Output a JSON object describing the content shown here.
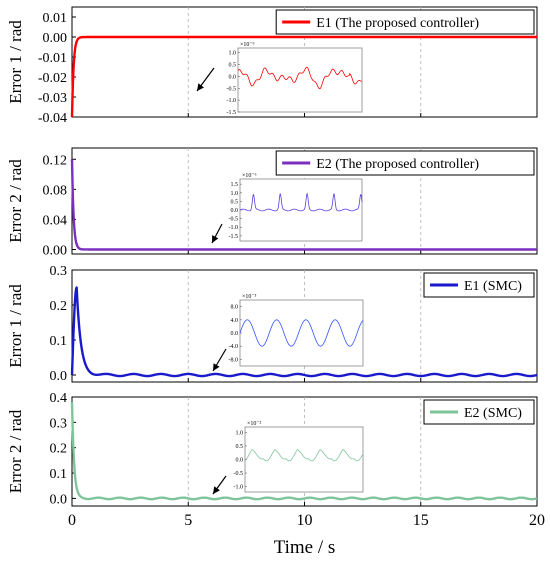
{
  "chart_data": {
    "type": "line",
    "xlabel": "Time / s",
    "xlim": [
      0,
      20
    ],
    "xticks": [
      0,
      5,
      10,
      15,
      20
    ],
    "panels": [
      {
        "ylabel": "Error  1 / rad",
        "ylim": [
          -0.04,
          0.015
        ],
        "yticks": [
          -0.04,
          -0.03,
          -0.02,
          -0.01,
          0.0,
          0.01
        ],
        "ytick_labels": [
          "-0.04",
          "-0.03",
          "-0.02",
          "-0.01",
          "0.00",
          "0.01"
        ],
        "series": {
          "name": "E1 (The proposed controller)",
          "color": "#ff0000",
          "shape": "fast_decay",
          "start": -0.04,
          "tau": 0.07,
          "osc_amp": 0,
          "osc_freq": 0
        },
        "legend": "top-right",
        "inset": {
          "exponent_label": "×10⁻⁶",
          "yticks": [
            1.0,
            0.5,
            0.0,
            -0.5,
            -1.0,
            -1.5
          ],
          "ytick_labels": [
            "1.0",
            "0.5",
            "0.0",
            "-0.5",
            "-1.0",
            "-1.5"
          ],
          "ylim": [
            -1.5,
            1.2
          ],
          "color": "#ff0000",
          "style": "noise"
        }
      },
      {
        "ylabel": "Error  2 / rad",
        "ylim": [
          -0.006,
          0.135
        ],
        "yticks": [
          0.0,
          0.04,
          0.08,
          0.12
        ],
        "ytick_labels": [
          "0.00",
          "0.04",
          "0.08",
          "0.12"
        ],
        "series": {
          "name": "E2 (The proposed controller)",
          "color": "#7b2fbf",
          "shape": "fast_decay",
          "start": 0.12,
          "tau": 0.07,
          "osc_amp": 0,
          "osc_freq": 0
        },
        "legend": "top-right",
        "inset": {
          "exponent_label": "×10⁻⁶",
          "yticks": [
            1.5,
            1.0,
            0.5,
            0.0,
            -0.5,
            -1.0,
            -1.5
          ],
          "ytick_labels": [
            "1.5",
            "1.0",
            "0.5",
            "0.0",
            "-0.5",
            "-1.0",
            "-1.5"
          ],
          "ylim": [
            -1.8,
            1.8
          ],
          "color": "#5b3fe0",
          "style": "spikes"
        }
      },
      {
        "ylabel": "Error  1 / rad",
        "ylim": [
          -0.02,
          0.3
        ],
        "yticks": [
          0.0,
          0.1,
          0.2,
          0.3
        ],
        "ytick_labels": [
          "0.0",
          "0.1",
          "0.2",
          "0.3"
        ],
        "series": {
          "name": "E1 (SMC)",
          "color": "#1a1acc",
          "shape": "peak_decay",
          "start": 0.0,
          "peak": 0.25,
          "peak_t": 0.2,
          "tau": 0.18,
          "osc_amp": 0.003,
          "osc_freq": 0.85
        },
        "legend": "top-right",
        "inset": {
          "exponent_label": "×10⁻³",
          "yticks": [
            8.0,
            4.0,
            0.0,
            -4.0,
            -8.0
          ],
          "ytick_labels": [
            "8.0",
            "4.0",
            "0.0",
            "-4.0",
            "-8.0"
          ],
          "ylim": [
            -10,
            10
          ],
          "color": "#3355ff",
          "style": "sine"
        }
      },
      {
        "ylabel": "Error  2 / rad",
        "ylim": [
          -0.03,
          0.4
        ],
        "yticks": [
          0.0,
          0.1,
          0.2,
          0.3,
          0.4
        ],
        "ytick_labels": [
          "0.0",
          "0.1",
          "0.2",
          "0.3",
          "0.4"
        ],
        "series": {
          "name": "E2 (SMC)",
          "color": "#7fc59a",
          "shape": "fast_decay",
          "start": 0.38,
          "tau": 0.09,
          "osc_amp": 0.003,
          "osc_freq": 1.1
        },
        "legend": "top-right",
        "inset": {
          "exponent_label": "×10⁻²",
          "yticks": [
            1.0,
            0.5,
            0.0,
            -0.5,
            -1.0
          ],
          "ytick_labels": [
            "1.0",
            "0.5",
            "0.0",
            "-0.5",
            "-1.0"
          ],
          "ylim": [
            -1.2,
            1.2
          ],
          "color": "#7fc59a",
          "style": "wavy"
        }
      }
    ]
  }
}
